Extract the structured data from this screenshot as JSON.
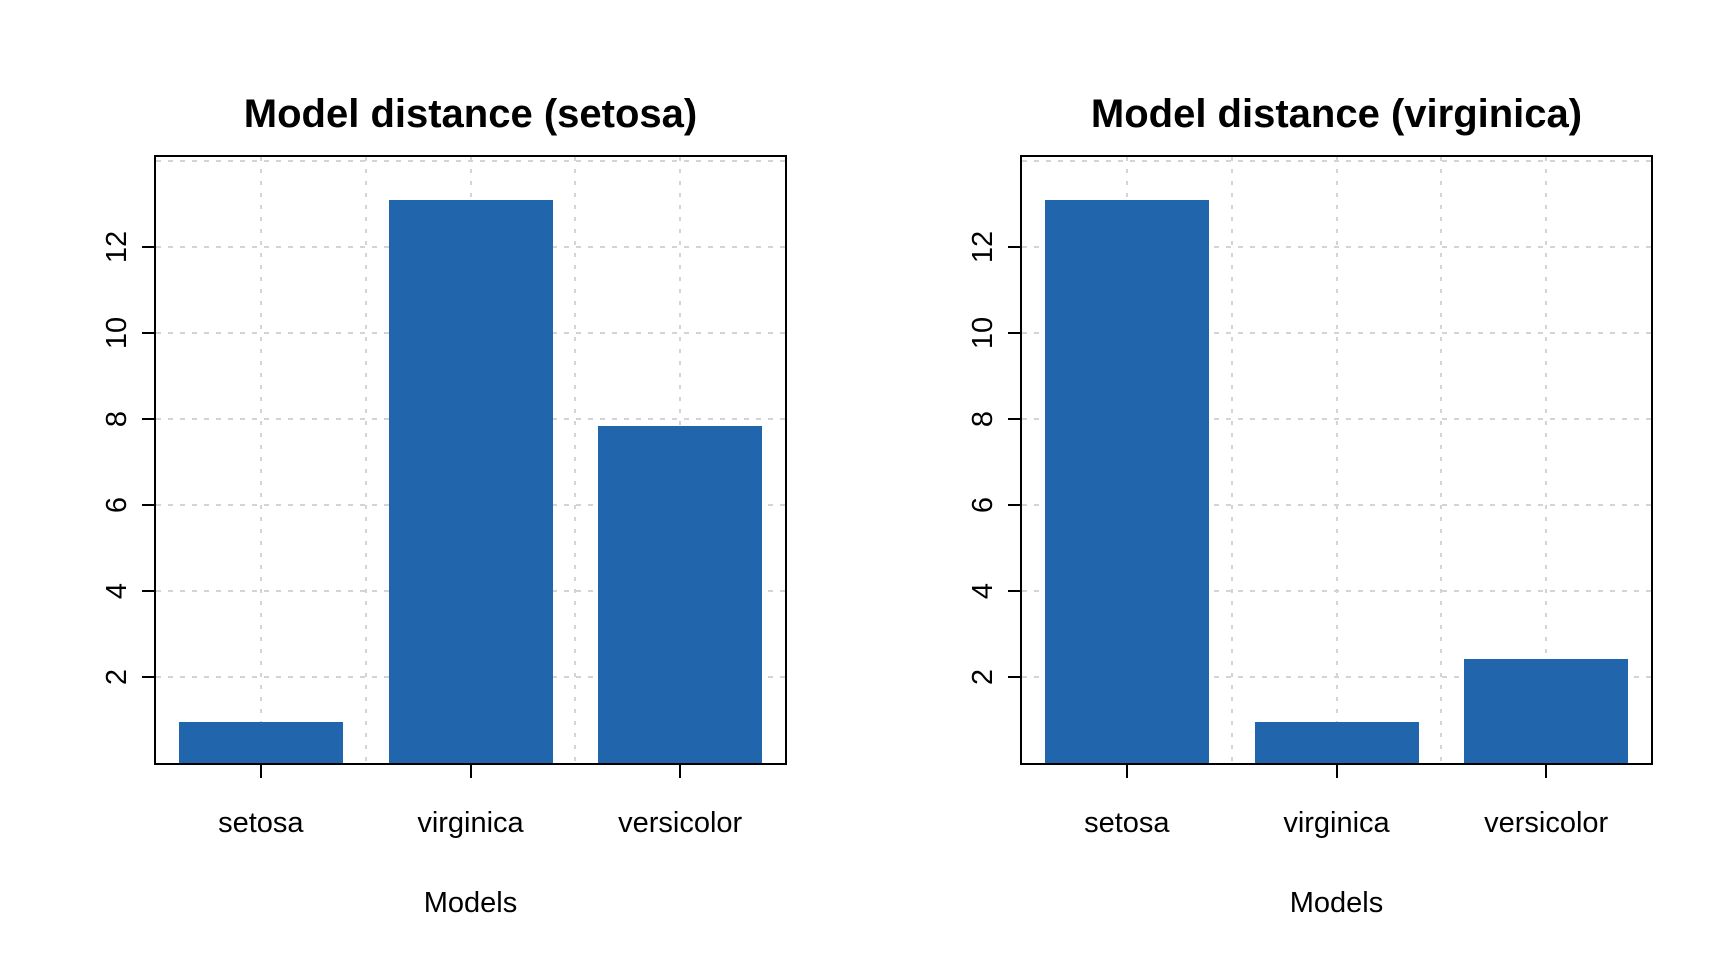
{
  "figure": {
    "background": "#ffffff",
    "bar_color": "#2166AC",
    "grid_color": "#D4D4D4",
    "axis_color": "#000000",
    "text_color": "#000000"
  },
  "chart_data": [
    {
      "type": "bar",
      "title": "Model distance (setosa)",
      "xlabel": "Models",
      "ylabel": "",
      "categories": [
        "setosa",
        "virginica",
        "versicolor"
      ],
      "values": [
        0.95,
        13.1,
        7.85
      ],
      "ytick_labels": [
        "2",
        "4",
        "6",
        "8",
        "10",
        "12"
      ],
      "ytick_values": [
        2,
        4,
        6,
        8,
        10,
        12
      ],
      "grid_y_values": [
        2,
        4,
        6,
        8,
        10,
        12,
        14
      ],
      "ylim": [
        0,
        14.1
      ],
      "grid": "dashed light-gray, horizontal at y ticks plus 5 evenly spaced vertical lines",
      "legend": "none",
      "bar_color": "#2166AC"
    },
    {
      "type": "bar",
      "title": "Model distance (virginica)",
      "xlabel": "Models",
      "ylabel": "",
      "categories": [
        "setosa",
        "virginica",
        "versicolor"
      ],
      "values": [
        13.1,
        0.95,
        2.43
      ],
      "ytick_labels": [
        "2",
        "4",
        "6",
        "8",
        "10",
        "12"
      ],
      "ytick_values": [
        2,
        4,
        6,
        8,
        10,
        12
      ],
      "grid_y_values": [
        2,
        4,
        6,
        8,
        10,
        12,
        14
      ],
      "ylim": [
        0,
        14.1
      ],
      "grid": "dashed light-gray, horizontal at y ticks plus 5 evenly spaced vertical lines",
      "legend": "none",
      "bar_color": "#2166AC"
    }
  ]
}
